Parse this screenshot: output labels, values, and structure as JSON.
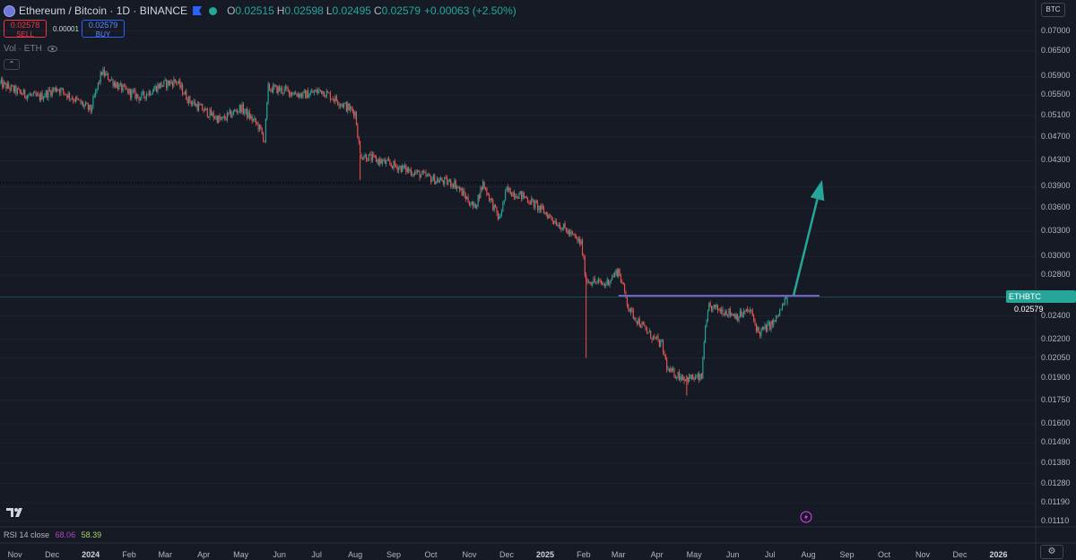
{
  "legend": {
    "symbol_title": "Ethereum / Bitcoin · 1D · BINANCE",
    "symbol_icon": "ethereum-bitcoin-pair-icon",
    "open_key": "O",
    "open": "0.02515",
    "high_key": "H",
    "high": "0.02598",
    "low_key": "L",
    "low": "0.02495",
    "close_key": "C",
    "close": "0.02579",
    "change": "+0.00063 (+2.50%)",
    "up_color": "#26a69a",
    "down_color": "#ef5350"
  },
  "trade": {
    "sell_price": "0.02578",
    "sell_label": "SELL",
    "spread": "0.00001",
    "buy_price": "0.02579",
    "buy_label": "BUY"
  },
  "volume": {
    "label": "Vol · ETH"
  },
  "currency": "BTC",
  "last_price_tag": {
    "symbol": "ETHBTC",
    "price": "0.02579"
  },
  "rsi": {
    "label": "RSI 14 close",
    "value1": "68.06",
    "value2": "58.39"
  },
  "price_axis": {
    "labels": [
      "0.07000",
      "0.06500",
      "0.05900",
      "0.05500",
      "0.05100",
      "0.04700",
      "0.04300",
      "0.03900",
      "0.03600",
      "0.03300",
      "0.03000",
      "0.02800",
      "0.02400",
      "0.02200",
      "0.02050",
      "0.01900",
      "0.01750",
      "0.01600",
      "0.01490",
      "0.01380",
      "0.01280",
      "0.01190",
      "0.01110"
    ],
    "scale": "log"
  },
  "time_axis": {
    "labels": [
      "Nov",
      "Dec",
      "2024",
      "Feb",
      "Mar",
      "Apr",
      "May",
      "Jun",
      "Jul",
      "Aug",
      "Sep",
      "Oct",
      "Nov",
      "Dec",
      "2025",
      "Feb",
      "Mar",
      "Apr",
      "May",
      "Jun",
      "Jul",
      "Aug",
      "Sep",
      "Oct",
      "Nov",
      "Dec",
      "2026"
    ]
  },
  "chart_data": {
    "type": "line",
    "series_style": "candlestick",
    "y_scale": "log",
    "ylim": [
      0.0108,
      0.0735
    ],
    "x_range": [
      "2023-10-20",
      "2026-01-31"
    ],
    "path": [
      [
        "2023-10-20",
        0.0575
      ],
      [
        "2023-11-05",
        0.0555
      ],
      [
        "2023-11-20",
        0.0545
      ],
      [
        "2023-12-05",
        0.0565
      ],
      [
        "2023-12-20",
        0.054
      ],
      [
        "2024-01-01",
        0.052
      ],
      [
        "2024-01-10",
        0.06
      ],
      [
        "2024-01-25",
        0.0565
      ],
      [
        "2024-02-10",
        0.0545
      ],
      [
        "2024-02-25",
        0.057
      ],
      [
        "2024-03-10",
        0.058
      ],
      [
        "2024-03-20",
        0.054
      ],
      [
        "2024-04-01",
        0.052
      ],
      [
        "2024-04-15",
        0.05
      ],
      [
        "2024-05-01",
        0.0525
      ],
      [
        "2024-05-15",
        0.049
      ],
      [
        "2024-05-20",
        0.0465
      ],
      [
        "2024-05-23",
        0.0565
      ],
      [
        "2024-06-05",
        0.056
      ],
      [
        "2024-06-20",
        0.055
      ],
      [
        "2024-07-05",
        0.056
      ],
      [
        "2024-07-20",
        0.0535
      ],
      [
        "2024-08-01",
        0.0515
      ],
      [
        "2024-08-05",
        0.044
      ],
      [
        "2024-08-20",
        0.043
      ],
      [
        "2024-09-05",
        0.042
      ],
      [
        "2024-09-20",
        0.041
      ],
      [
        "2024-10-05",
        0.04
      ],
      [
        "2024-10-20",
        0.0395
      ],
      [
        "2024-11-05",
        0.036
      ],
      [
        "2024-11-12",
        0.0395
      ],
      [
        "2024-11-25",
        0.0345
      ],
      [
        "2024-12-01",
        0.0385
      ],
      [
        "2024-12-16",
        0.0375
      ],
      [
        "2024-12-31",
        0.0355
      ],
      [
        "2025-01-15",
        0.0335
      ],
      [
        "2025-01-30",
        0.0315
      ],
      [
        "2025-02-03",
        0.0275
      ],
      [
        "2025-02-18",
        0.027
      ],
      [
        "2025-03-01",
        0.0285
      ],
      [
        "2025-03-10",
        0.0245
      ],
      [
        "2025-03-25",
        0.0225
      ],
      [
        "2025-04-05",
        0.0215
      ],
      [
        "2025-04-10",
        0.0195
      ],
      [
        "2025-04-25",
        0.019
      ],
      [
        "2025-05-07",
        0.019
      ],
      [
        "2025-05-09",
        0.022
      ],
      [
        "2025-05-13",
        0.0248
      ],
      [
        "2025-05-25",
        0.0245
      ],
      [
        "2025-06-05",
        0.024
      ],
      [
        "2025-06-15",
        0.0245
      ],
      [
        "2025-06-22",
        0.0225
      ],
      [
        "2025-07-05",
        0.0235
      ],
      [
        "2025-07-15",
        0.0258
      ]
    ],
    "long_wicks": [
      [
        "2025-02-03",
        0.0205,
        0.0275
      ],
      [
        "2024-08-05",
        0.04,
        0.044
      ],
      [
        "2025-04-25",
        0.0178,
        0.0192
      ]
    ],
    "lines": {
      "resistance": {
        "value": 0.0259,
        "x_start": "2025-03-01",
        "x_end": "2025-08-10",
        "color": "#7e57c2"
      },
      "support_dotted": {
        "value": 0.0396,
        "x_start": "2023-10-20",
        "x_end": "2025-01-28",
        "color": "#000000"
      },
      "last_price": {
        "value": 0.02579,
        "color": "#26a69a"
      }
    },
    "arrow": {
      "from": [
        "2025-07-20",
        0.0259
      ],
      "to": [
        "2025-08-12",
        0.04
      ],
      "color": "#26a69a"
    }
  }
}
